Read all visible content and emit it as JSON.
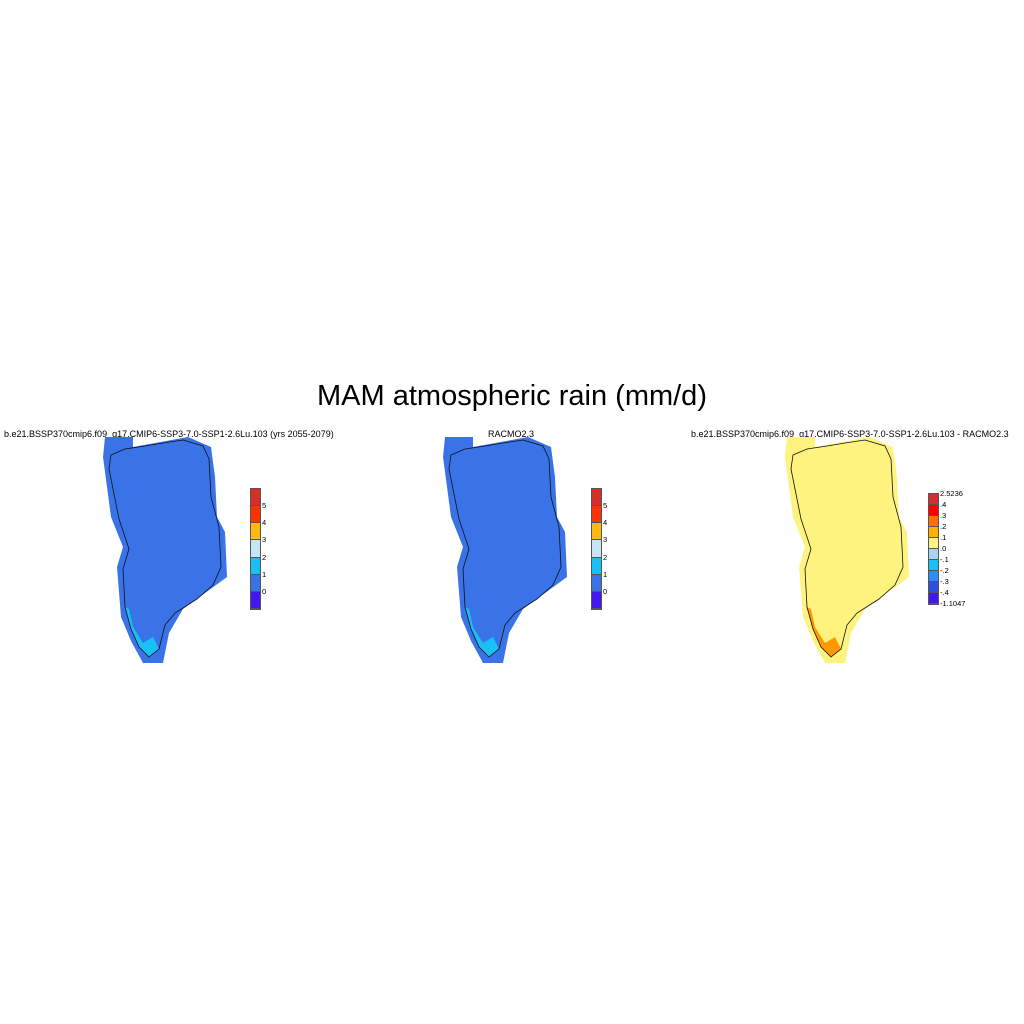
{
  "title": "MAM atmospheric rain (mm/d)",
  "panels": [
    {
      "title": "b.e21.BSSP370cmip6.f09_g17.CMIP6-SSP3-7.0-SSP1-2.6Lu.103 (yrs 2055-2079)",
      "fill": "#3a73e8",
      "coast_fill": "#18c0f5",
      "colorbar": {
        "colors": [
          "#d62f27",
          "#ff3300",
          "#ffb90f",
          "#c6e6f5",
          "#18c0f5",
          "#3a73e8",
          "#4416f0"
        ],
        "labels": [
          "5",
          "4",
          "3",
          "2",
          "1",
          "0"
        ]
      }
    },
    {
      "title": "RACMO2.3",
      "fill": "#3a73e8",
      "coast_fill": "#18c0f5",
      "colorbar": {
        "colors": [
          "#d62f27",
          "#ff3300",
          "#ffb90f",
          "#c6e6f5",
          "#18c0f5",
          "#3a73e8",
          "#4416f0"
        ],
        "labels": [
          "5",
          "4",
          "3",
          "2",
          "1",
          "0"
        ]
      }
    },
    {
      "title": "b.e21.BSSP370cmip6.f09_g17.CMIP6-SSP3-7.0-SSP1-2.6Lu.103 - RACMO2.3",
      "fill": "#fff37f",
      "coast_fill": "#ff9900",
      "colorbar": {
        "colors": [
          "#d32f2f",
          "#ff0000",
          "#ff7000",
          "#ffb300",
          "#fff37f",
          "#a9d4f0",
          "#18c0f5",
          "#2a8ef5",
          "#2b50e0",
          "#4416f0"
        ],
        "labels": [
          "2.5236",
          ".4",
          ".3",
          ".2",
          ".1",
          ".0",
          "-.1",
          "-.2",
          "-.3",
          "-.4",
          "-1.1047"
        ]
      }
    }
  ]
}
